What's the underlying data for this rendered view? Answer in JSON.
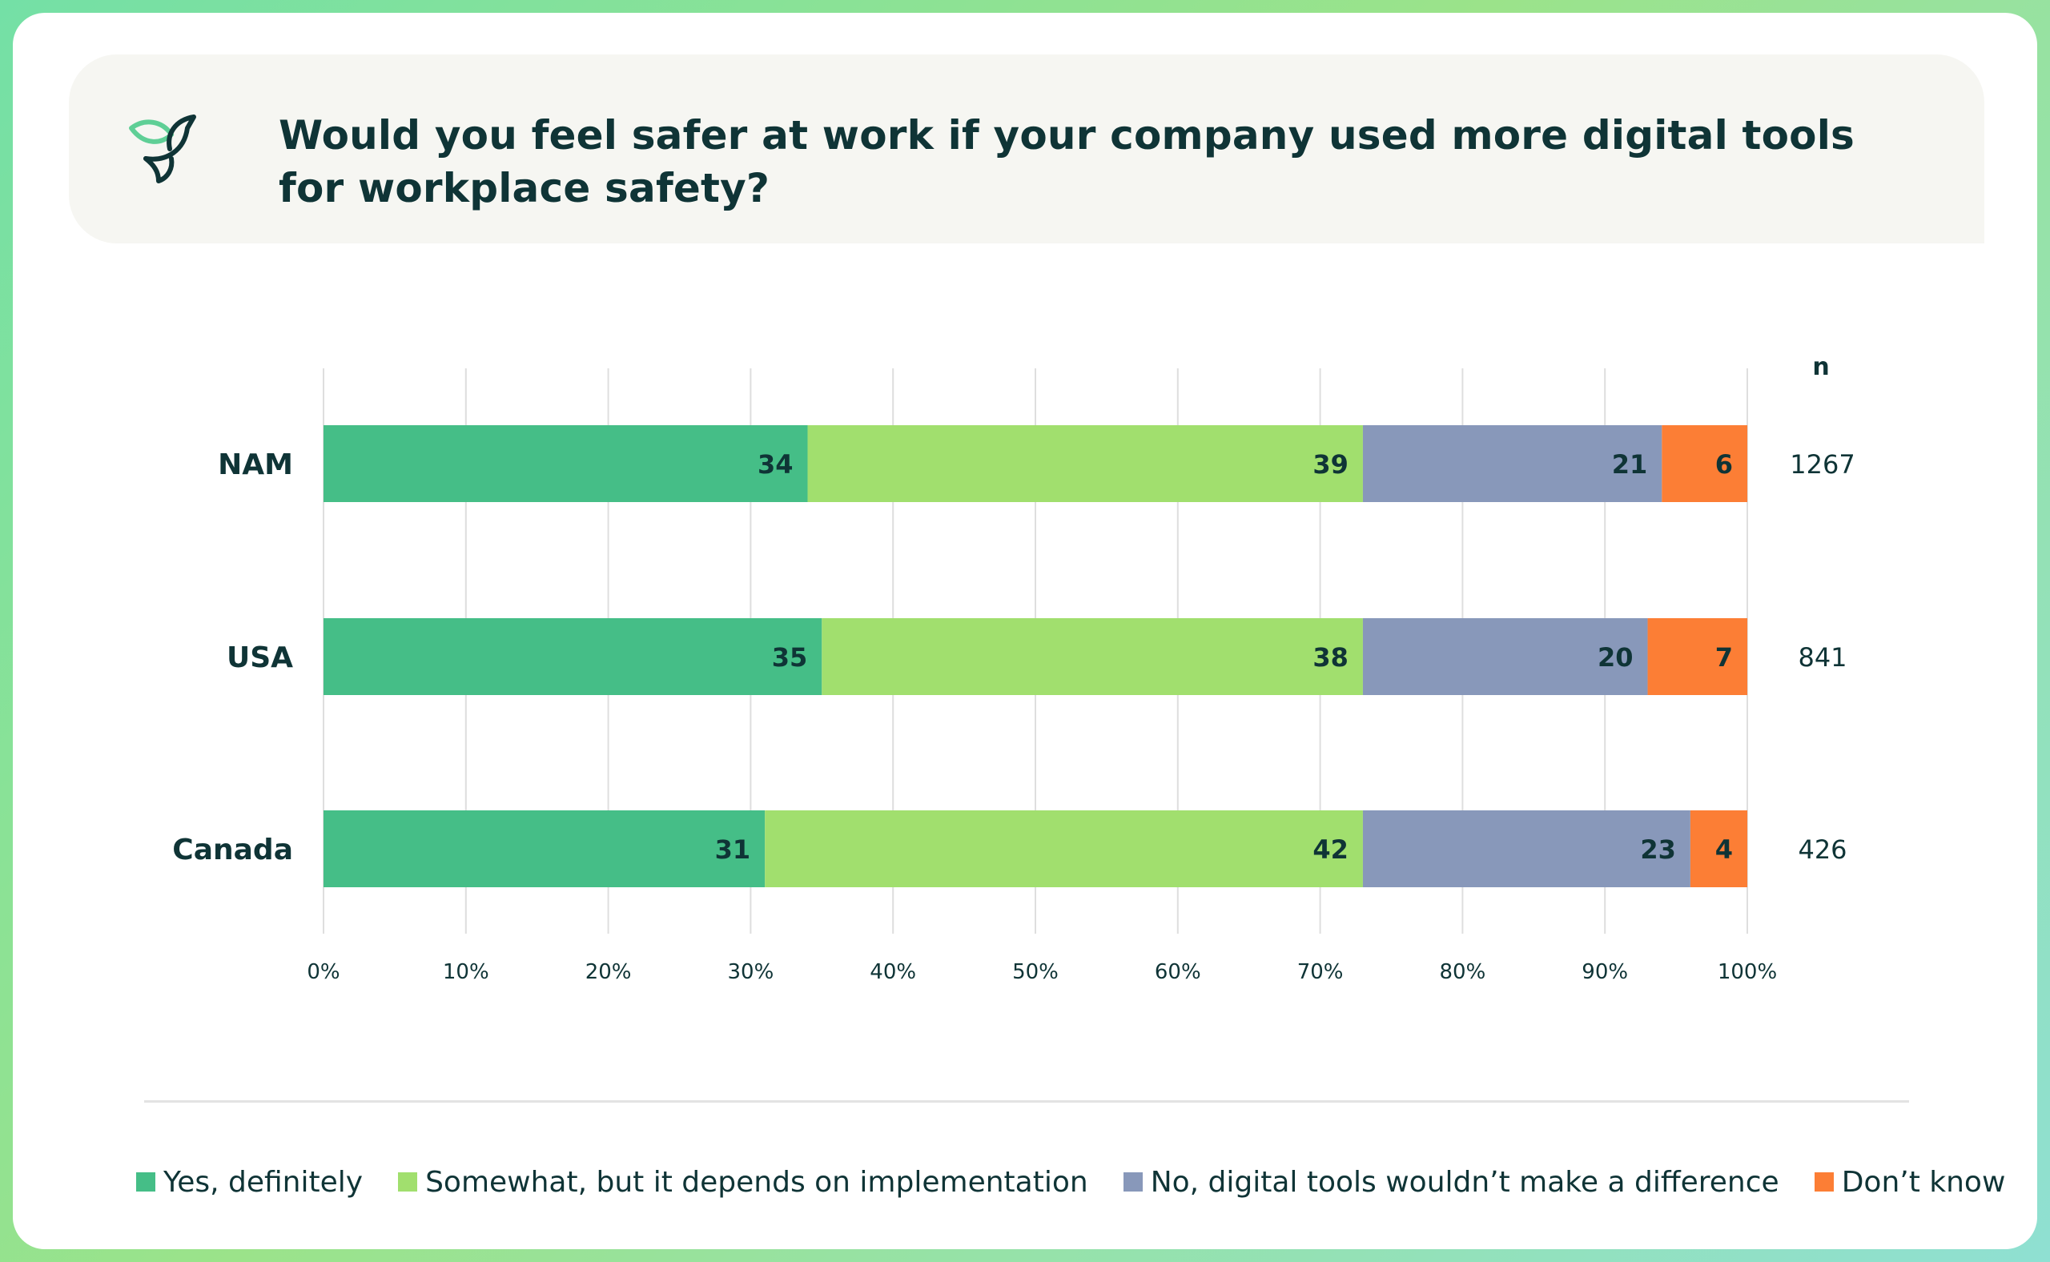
{
  "header": {
    "title": "Would you feel safer at work if your company used more digital tools for workplace safety?",
    "icon": "bird-leaf-icon"
  },
  "chart_data": {
    "type": "bar",
    "orientation": "horizontal",
    "stacked": true,
    "title": "Would you feel safer at work if your company used more digital tools for workplace safety?",
    "categories": [
      "NAM",
      "USA",
      "Canada"
    ],
    "series": [
      {
        "name": "Yes, definitely",
        "values": [
          34,
          35,
          31
        ],
        "color": "#45be87"
      },
      {
        "name": "Somewhat, but it depends on implementation",
        "values": [
          39,
          38,
          42
        ],
        "color": "#a1df6e"
      },
      {
        "name": "No, digital tools wouldn’t make a difference",
        "values": [
          21,
          20,
          23
        ],
        "color": "#8898ba"
      },
      {
        "name": "Don’t know",
        "values": [
          6,
          7,
          4
        ],
        "color": "#fc7e35"
      }
    ],
    "n_header": "n",
    "n_values": [
      "1267",
      "841",
      "426"
    ],
    "xlim": [
      0,
      100
    ],
    "xticks": [
      "0%",
      "10%",
      "20%",
      "30%",
      "40%",
      "50%",
      "60%",
      "70%",
      "80%",
      "90%",
      "100%"
    ],
    "grid": true,
    "legend_position": "bottom"
  }
}
